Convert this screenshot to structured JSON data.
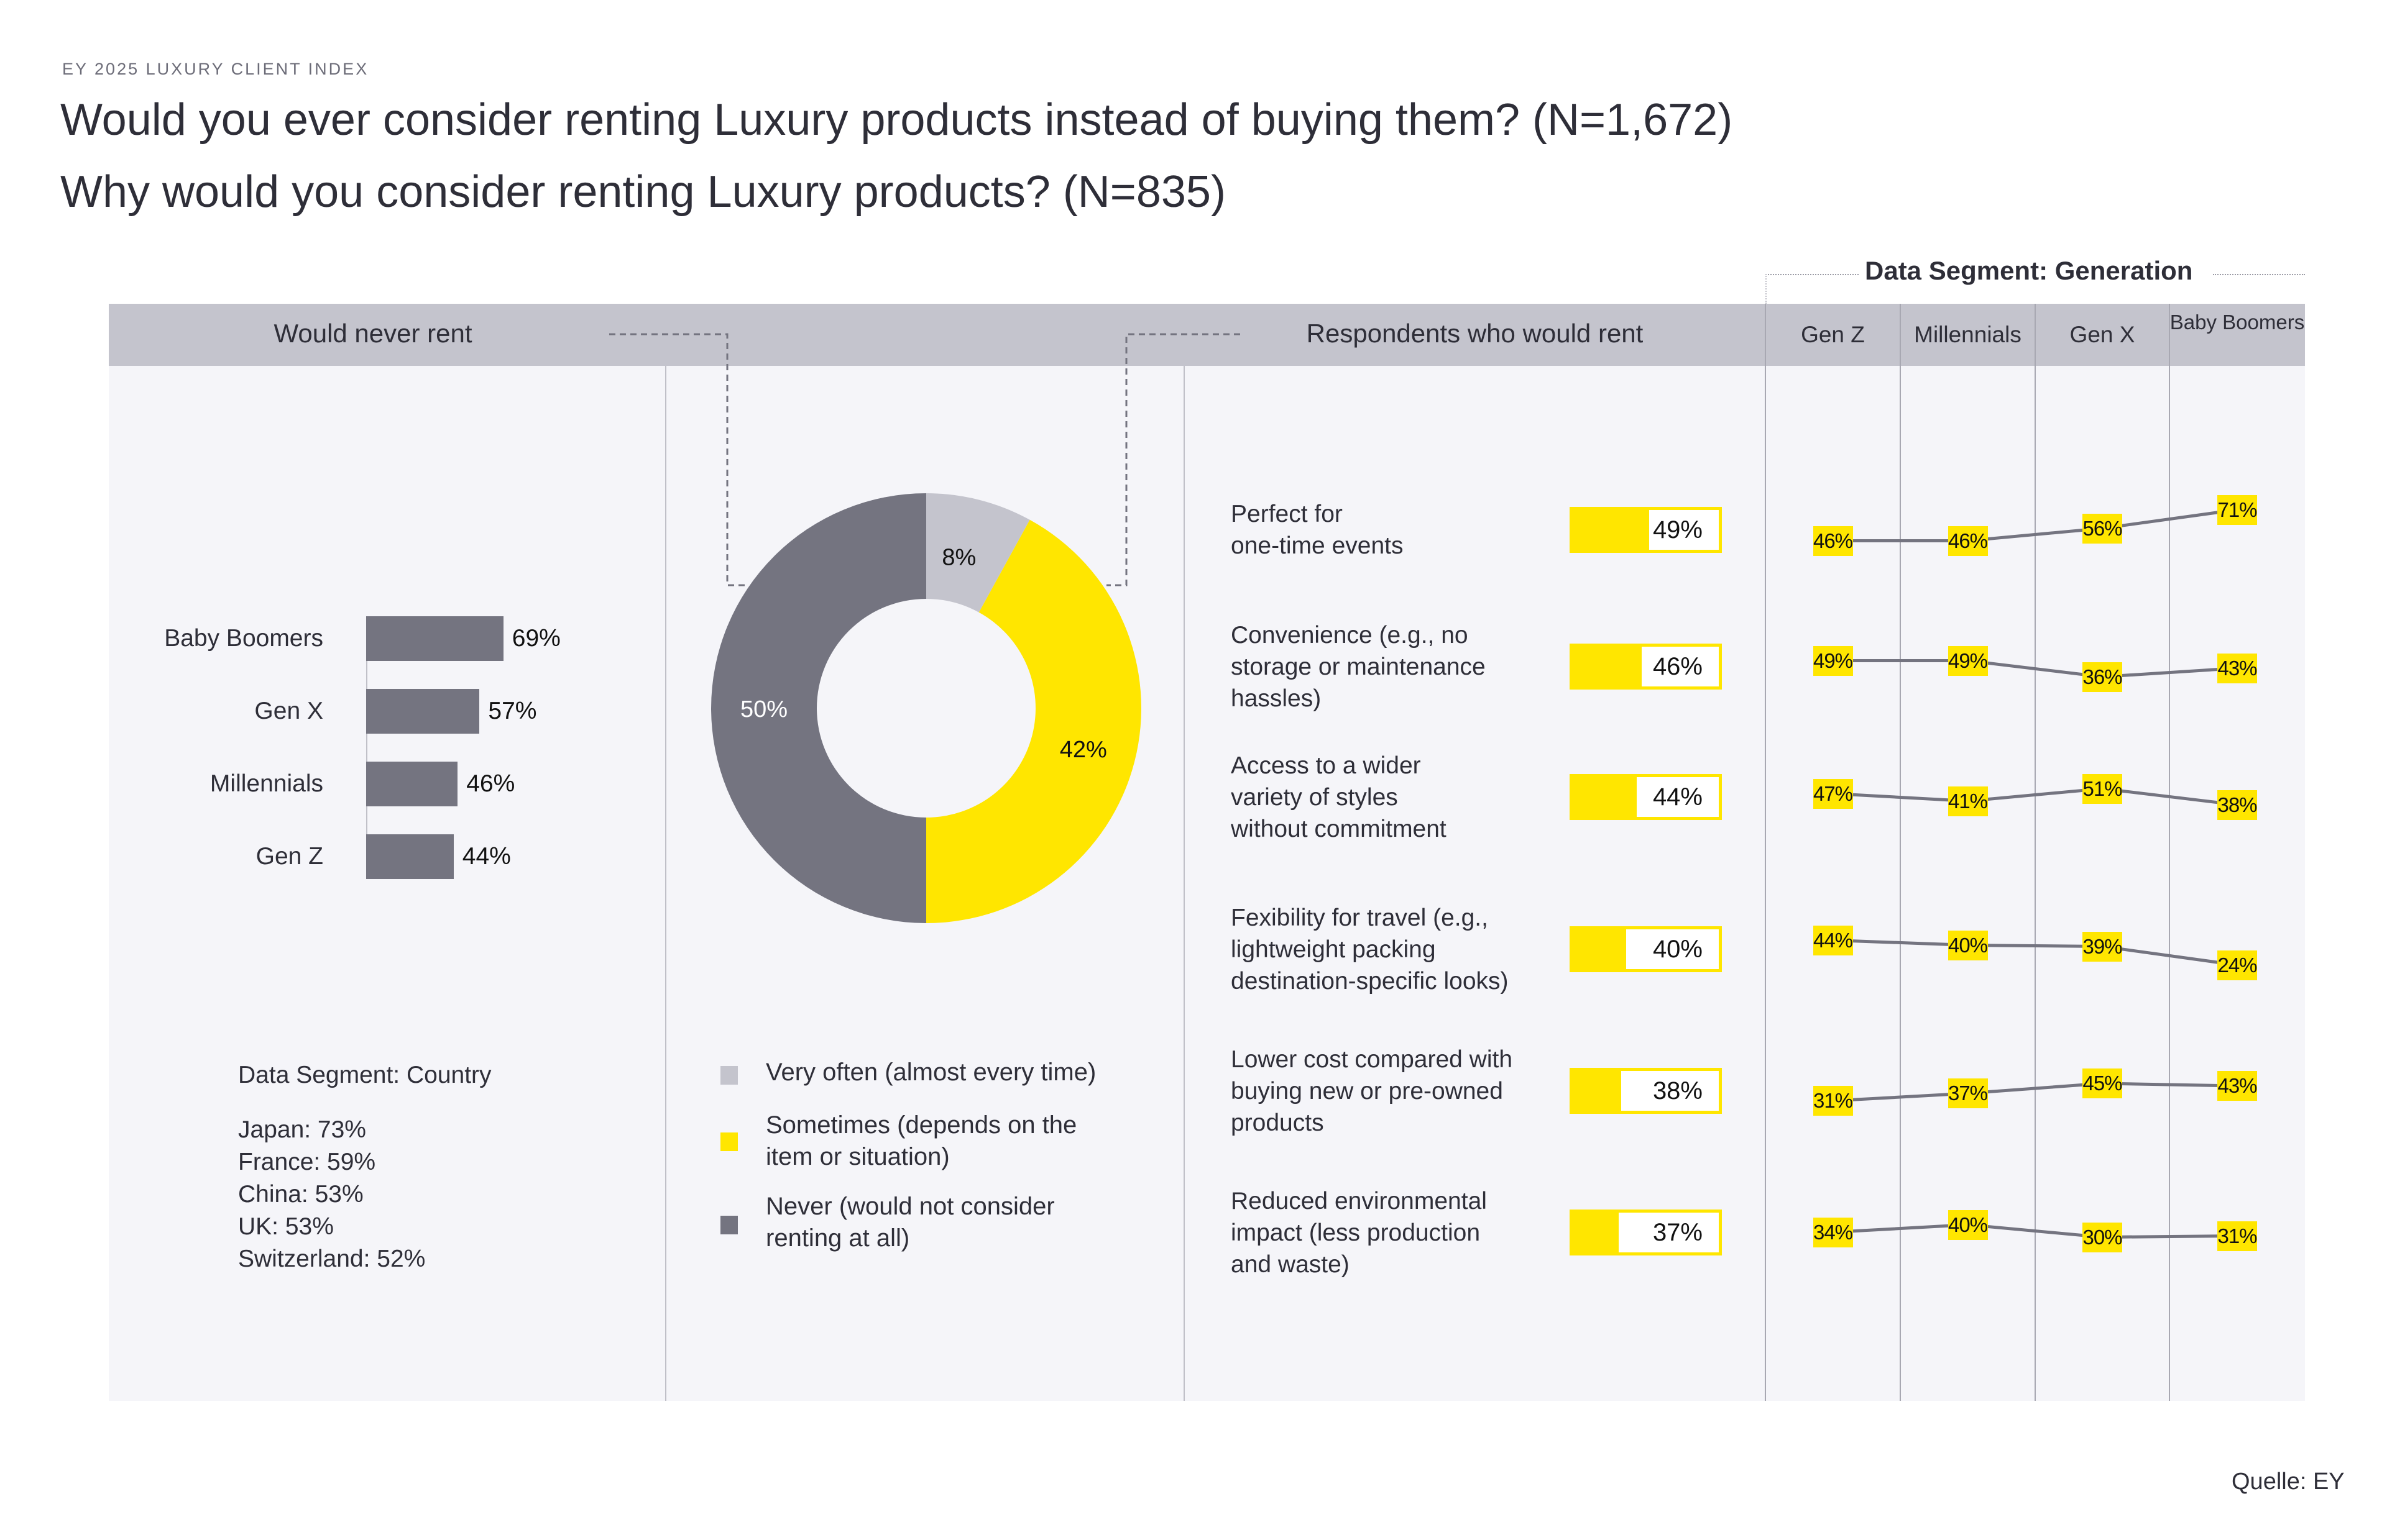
{
  "kicker": "EY 2025 LUXURY CLIENT INDEX",
  "title_line1": "Would you ever consider renting Luxury products instead of buying them? (N=1,672)",
  "title_line2": "Why would you consider renting Luxury products? (N=835)",
  "source": "Quelle: EY",
  "colors": {
    "yellow": "#ffe600",
    "dark_gray": "#747480",
    "light_gray": "#c4c4cd",
    "panel_bg": "#f5f5f9",
    "text": "#2e2e38"
  },
  "headers": {
    "never_rent": "Would never rent",
    "would_rent": "Respondents who would rent",
    "generation_segment": "Data Segment: Generation",
    "generations": [
      "Gen Z",
      "Millennials",
      "Gen X",
      "Baby Boomers"
    ]
  },
  "country_segment": {
    "title": "Data Segment: Country",
    "items": [
      "Japan: 73%",
      "France: 59%",
      "China: 53%",
      "UK: 53%",
      "Switzerland: 52%"
    ]
  },
  "legend": [
    {
      "label": "Very often (almost every time)",
      "color": "#c4c4cd"
    },
    {
      "label": "Sometimes (depends on the item or situation)",
      "color": "#ffe600"
    },
    {
      "label": "Never (would not consider renting at all)",
      "color": "#747480"
    }
  ],
  "chart_data": [
    {
      "type": "bar",
      "title": "Would never rent",
      "orientation": "horizontal",
      "categories": [
        "Baby Boomers",
        "Gen X",
        "Millennials",
        "Gen Z"
      ],
      "values": [
        69,
        57,
        46,
        44
      ],
      "labels": [
        "69%",
        "57%",
        "46%",
        "44%"
      ],
      "unit": "%"
    },
    {
      "type": "pie",
      "subtype": "donut",
      "title": "Would you ever consider renting Luxury products instead of buying them? (N=1,672)",
      "categories": [
        "Very often (almost every time)",
        "Sometimes (depends on the item or situation)",
        "Never (would not consider renting at all)"
      ],
      "values": [
        8,
        42,
        50
      ],
      "labels": [
        "8%",
        "42%",
        "50%"
      ],
      "colors": [
        "#c4c4cd",
        "#ffe600",
        "#747480"
      ],
      "legend": "bottom"
    },
    {
      "type": "bar",
      "title": "Respondents who would rent",
      "orientation": "horizontal",
      "categories": [
        "Perfect for one-time events",
        "Convenience (e.g., no storage or maintenance hassles)",
        "Access to a wider variety of styles without commitment",
        "Fexibility for travel (e.g., lightweight packing destination-specific looks)",
        "Lower cost compared with buying new or pre-owned products",
        "Reduced environmental impact (less production and waste)"
      ],
      "category_lines": [
        [
          "Perfect for",
          "one-time events"
        ],
        [
          "Convenience (e.g., no",
          "storage or maintenance",
          "hassles)"
        ],
        [
          "Access to a wider",
          "variety of styles",
          "without commitment"
        ],
        [
          "Fexibility for travel (e.g.,",
          "lightweight packing",
          "destination-specific looks)"
        ],
        [
          "Lower cost compared with",
          "buying new or pre-owned",
          "products"
        ],
        [
          "Reduced environmental",
          "impact (less production",
          "and waste)"
        ]
      ],
      "values": [
        49,
        46,
        44,
        40,
        38,
        37
      ],
      "labels": [
        "49%",
        "46%",
        "44%",
        "40%",
        "38%",
        "37%"
      ],
      "unit": "%"
    },
    {
      "type": "line",
      "title": "Data Segment: Generation",
      "x": [
        "Gen Z",
        "Millennials",
        "Gen X",
        "Baby Boomers"
      ],
      "series": [
        {
          "name": "Perfect for one-time events",
          "values": [
            46,
            46,
            56,
            71
          ]
        },
        {
          "name": "Convenience (e.g., no storage or maintenance hassles)",
          "values": [
            49,
            49,
            36,
            43
          ]
        },
        {
          "name": "Access to a wider variety of styles without commitment",
          "values": [
            47,
            41,
            51,
            38
          ]
        },
        {
          "name": "Fexibility for travel (e.g., lightweight packing destination-specific looks)",
          "values": [
            44,
            40,
            39,
            24
          ]
        },
        {
          "name": "Lower cost compared with buying new or pre-owned products",
          "values": [
            31,
            37,
            45,
            43
          ]
        },
        {
          "name": "Reduced environmental impact (less production and waste)",
          "values": [
            34,
            40,
            30,
            31
          ]
        }
      ],
      "unit": "%",
      "grid": false
    }
  ]
}
